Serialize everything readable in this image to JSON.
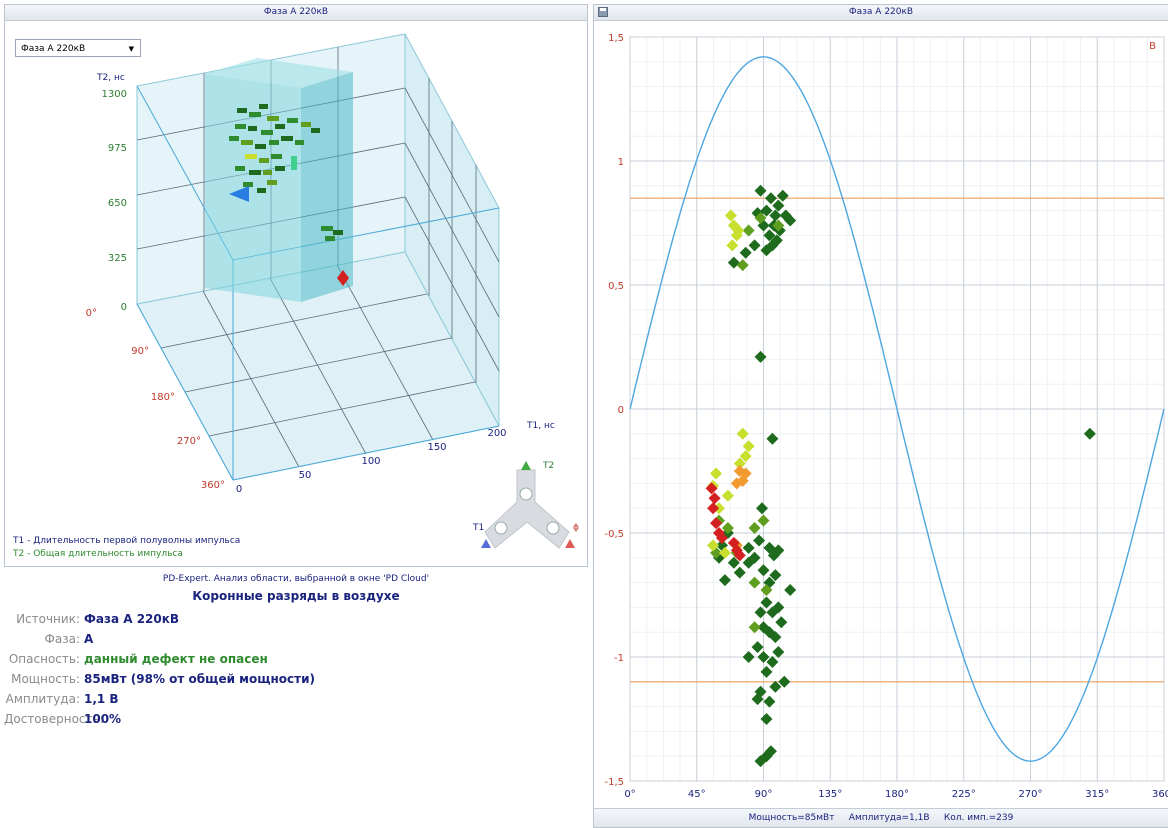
{
  "left_panel": {
    "title": "Фаза А 220кВ",
    "phase_select": {
      "value": "Фаза А 220кВ"
    },
    "axes": {
      "t2_label": "T2, нс",
      "t2_ticks": [
        "0",
        "325",
        "650",
        "975",
        "1300"
      ],
      "t1_label": "T1, нс",
      "t1_ticks": [
        "0",
        "50",
        "100",
        "150",
        "200"
      ],
      "phase_ticks": [
        "0°",
        "90°",
        "180°",
        "270°",
        "360°"
      ]
    },
    "legend_t1": "T1 - Длительность первой полуволны импульса",
    "legend_t2": "T2 - Общая длительность импульса",
    "nav_labels": {
      "t1": "T1",
      "t2": "T2",
      "phi": "ϕ"
    }
  },
  "expert_panel": {
    "header": "PD-Expert. Анализ области, выбранной в окне 'PD Cloud'",
    "title": "Коронные разряды в воздухе",
    "rows": [
      {
        "label": "Источник:",
        "value": "Фаза А 220кВ",
        "color": "#1a237e"
      },
      {
        "label": "Фаза:",
        "value": "А",
        "color": "#1a237e"
      },
      {
        "label": "Опасность:",
        "value": "данный дефект не опасен",
        "color": "#2e8b2e"
      },
      {
        "label": "Мощность:",
        "value": "85мВт (98% от общей мощности)",
        "color": "#1a237e"
      },
      {
        "label": "Амплитуда:",
        "value": "1,1 В",
        "color": "#1a237e"
      },
      {
        "label": "Достоверность:",
        "value": "100%",
        "color": "#1a237e"
      }
    ]
  },
  "right_panel": {
    "title": "Фаза А 220кВ",
    "corner_label": "В",
    "status": {
      "power": "Мощность=85мВт",
      "amplitude": "Амплитуда=1,1В",
      "count": "Кол. имп.=239"
    }
  },
  "chart_data": {
    "type": "scatter",
    "title": "Фаза А 220кВ",
    "xlabel": "",
    "ylabel": "",
    "xlim": [
      0,
      360
    ],
    "ylim": [
      -1.5,
      1.5
    ],
    "x_ticks": [
      "0°",
      "45°",
      "90°",
      "135°",
      "180°",
      "225°",
      "270°",
      "315°",
      "360°"
    ],
    "y_ticks": [
      "-1,5",
      "-1",
      "-0,5",
      "0",
      "0,5",
      "1",
      "1,5"
    ],
    "grid": true,
    "reference_sine_amplitude": 1.42,
    "threshold_lines": [
      0.85,
      -1.1
    ],
    "colors": {
      "sine": "#4da6e0",
      "threshold": "#f0a060",
      "tick": "#1a237e",
      "ytick": "#c0392b"
    },
    "series": [
      {
        "color": "#1e6b1e",
        "points": [
          [
            88,
            0.88
          ],
          [
            92,
            0.8
          ],
          [
            95,
            0.85
          ],
          [
            98,
            0.78
          ],
          [
            100,
            0.82
          ],
          [
            103,
            0.86
          ],
          [
            90,
            0.74
          ],
          [
            94,
            0.7
          ],
          [
            97,
            0.74
          ],
          [
            101,
            0.72
          ],
          [
            105,
            0.78
          ],
          [
            108,
            0.76
          ],
          [
            86,
            0.79
          ],
          [
            84,
            0.66
          ],
          [
            92,
            0.64
          ],
          [
            96,
            0.66
          ],
          [
            78,
            0.63
          ],
          [
            70,
            0.59
          ],
          [
            99,
            0.68
          ],
          [
            88,
            0.21
          ],
          [
            96,
            -0.12
          ],
          [
            89,
            -0.4
          ],
          [
            87,
            -0.53
          ],
          [
            94,
            -0.56
          ],
          [
            97,
            -0.59
          ],
          [
            100,
            -0.57
          ],
          [
            84,
            -0.6
          ],
          [
            80,
            -0.62
          ],
          [
            90,
            -0.65
          ],
          [
            94,
            -0.7
          ],
          [
            98,
            -0.67
          ],
          [
            92,
            -0.78
          ],
          [
            88,
            -0.82
          ],
          [
            96,
            -0.82
          ],
          [
            100,
            -0.8
          ],
          [
            108,
            -0.73
          ],
          [
            90,
            -0.88
          ],
          [
            94,
            -0.9
          ],
          [
            98,
            -0.92
          ],
          [
            102,
            -0.86
          ],
          [
            86,
            -0.96
          ],
          [
            90,
            -1.0
          ],
          [
            96,
            -1.02
          ],
          [
            100,
            -0.98
          ],
          [
            80,
            -1.0
          ],
          [
            92,
            -1.06
          ],
          [
            98,
            -1.12
          ],
          [
            104,
            -1.1
          ],
          [
            88,
            -1.14
          ],
          [
            94,
            -1.18
          ],
          [
            86,
            -1.17
          ],
          [
            92,
            -1.25
          ],
          [
            92,
            -1.4
          ],
          [
            88,
            -1.42
          ],
          [
            95,
            -1.38
          ],
          [
            62,
            -0.55
          ],
          [
            66,
            -0.5
          ],
          [
            60,
            -0.6
          ],
          [
            70,
            -0.62
          ],
          [
            74,
            -0.66
          ],
          [
            64,
            -0.69
          ],
          [
            80,
            -0.56
          ],
          [
            310,
            -0.1
          ]
        ]
      },
      {
        "color": "#5f9e1f",
        "points": [
          [
            60,
            -0.45
          ],
          [
            58,
            -0.58
          ],
          [
            66,
            -0.48
          ],
          [
            72,
            -0.58
          ],
          [
            84,
            -0.48
          ],
          [
            90,
            -0.45
          ],
          [
            92,
            -0.73
          ],
          [
            84,
            -0.88
          ],
          [
            88,
            0.77
          ],
          [
            80,
            0.72
          ],
          [
            76,
            0.58
          ],
          [
            100,
            0.74
          ],
          [
            84,
            -0.7
          ]
        ]
      },
      {
        "color": "#c8df2e",
        "points": [
          [
            68,
            0.78
          ],
          [
            70,
            0.74
          ],
          [
            72,
            0.7
          ],
          [
            69,
            0.66
          ],
          [
            73,
            0.72
          ],
          [
            80,
            -0.15
          ],
          [
            78,
            -0.19
          ],
          [
            74,
            -0.22
          ],
          [
            66,
            -0.35
          ],
          [
            58,
            -0.26
          ],
          [
            56,
            -0.31
          ],
          [
            60,
            -0.4
          ],
          [
            64,
            -0.58
          ],
          [
            56,
            -0.55
          ],
          [
            76,
            -0.1
          ]
        ]
      },
      {
        "color": "#f09a30",
        "points": [
          [
            74,
            -0.25
          ],
          [
            76,
            -0.29
          ],
          [
            72,
            -0.3
          ],
          [
            78,
            -0.26
          ],
          [
            72,
            -0.55
          ]
        ]
      },
      {
        "color": "#d42020",
        "points": [
          [
            55,
            -0.32
          ],
          [
            57,
            -0.36
          ],
          [
            56,
            -0.4
          ],
          [
            58,
            -0.46
          ],
          [
            60,
            -0.5
          ],
          [
            70,
            -0.54
          ],
          [
            72,
            -0.57
          ],
          [
            74,
            -0.59
          ],
          [
            62,
            -0.52
          ]
        ]
      }
    ]
  }
}
